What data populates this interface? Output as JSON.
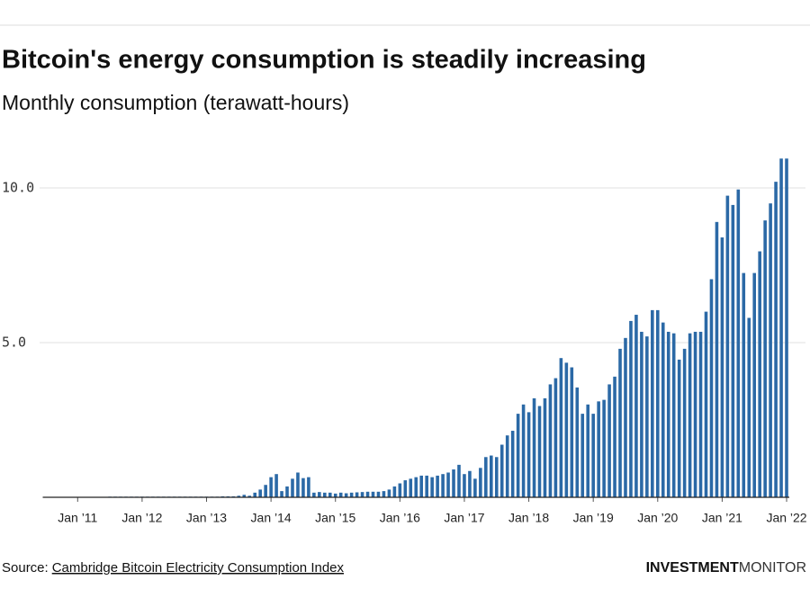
{
  "chart_data": {
    "type": "bar",
    "title": "Bitcoin's energy consumption is steadily increasing",
    "subtitle": "Monthly consumption (terawatt-hours)",
    "categories": [
      null,
      null,
      null,
      null,
      null,
      null,
      "Jan ’11",
      null,
      null,
      null,
      null,
      null,
      null,
      null,
      null,
      null,
      null,
      null,
      "Jan ’12",
      null,
      null,
      null,
      null,
      null,
      null,
      null,
      null,
      null,
      null,
      null,
      "Jan ’13",
      null,
      null,
      null,
      null,
      null,
      null,
      null,
      null,
      null,
      null,
      null,
      "Jan ’14",
      null,
      null,
      null,
      null,
      null,
      null,
      null,
      null,
      null,
      null,
      null,
      "Jan ’15",
      null,
      null,
      null,
      null,
      null,
      null,
      null,
      null,
      null,
      null,
      null,
      "Jan ’16",
      null,
      null,
      null,
      null,
      null,
      null,
      null,
      null,
      null,
      null,
      null,
      "Jan ’17",
      null,
      null,
      null,
      null,
      null,
      null,
      null,
      null,
      null,
      null,
      null,
      "Jan ’18",
      null,
      null,
      null,
      null,
      null,
      null,
      null,
      null,
      null,
      null,
      null,
      "Jan ’19",
      null,
      null,
      null,
      null,
      null,
      null,
      null,
      null,
      null,
      null,
      null,
      "Jan ’20",
      null,
      null,
      null,
      null,
      null,
      null,
      null,
      null,
      null,
      null,
      null,
      "Jan ’21",
      null,
      null,
      null,
      null,
      null,
      null,
      null,
      null,
      null,
      null,
      null,
      "Jan ’22"
    ],
    "values": [
      0.01,
      0.01,
      0.01,
      0.01,
      0.01,
      0.01,
      0.01,
      0.01,
      0.01,
      0.01,
      0.01,
      0.01,
      0.02,
      0.02,
      0.02,
      0.02,
      0.02,
      0.02,
      0.02,
      0.02,
      0.02,
      0.02,
      0.02,
      0.02,
      0.02,
      0.02,
      0.02,
      0.02,
      0.02,
      0.02,
      0.02,
      0.02,
      0.02,
      0.03,
      0.03,
      0.03,
      0.05,
      0.08,
      0.05,
      0.15,
      0.25,
      0.4,
      0.65,
      0.75,
      0.2,
      0.35,
      0.6,
      0.8,
      0.62,
      0.65,
      0.15,
      0.17,
      0.15,
      0.15,
      0.12,
      0.15,
      0.13,
      0.15,
      0.16,
      0.17,
      0.18,
      0.18,
      0.18,
      0.2,
      0.25,
      0.35,
      0.45,
      0.55,
      0.6,
      0.65,
      0.7,
      0.7,
      0.65,
      0.7,
      0.75,
      0.8,
      0.9,
      1.05,
      0.75,
      0.85,
      0.6,
      0.95,
      1.3,
      1.35,
      1.3,
      1.7,
      2.0,
      2.15,
      2.7,
      3.0,
      2.75,
      3.2,
      2.95,
      3.2,
      3.65,
      3.85,
      4.5,
      4.35,
      4.2,
      3.55,
      2.7,
      3.0,
      2.7,
      3.1,
      3.15,
      3.65,
      3.9,
      4.8,
      5.15,
      5.7,
      5.9,
      5.35,
      5.2,
      6.05,
      6.05,
      5.65,
      5.35,
      5.3,
      4.45,
      4.8,
      5.3,
      5.35,
      5.35,
      6.0,
      7.05,
      8.9,
      8.4,
      9.75,
      9.45,
      9.95,
      7.25,
      5.8,
      7.25,
      7.95,
      8.95,
      9.5,
      10.2,
      10.95,
      10.95
    ],
    "color": "#2b69a6",
    "ylim": [
      0,
      11
    ],
    "yticks": [
      {
        "value": 5,
        "label": "5.0"
      },
      {
        "value": 10,
        "label": "10.0"
      }
    ],
    "grid": true,
    "source_label": "Source:",
    "source_link": "Cambridge Bitcoin Electricity Consumption Index",
    "brand_bold": "INVESTMENT",
    "brand_light": "MONITOR"
  }
}
